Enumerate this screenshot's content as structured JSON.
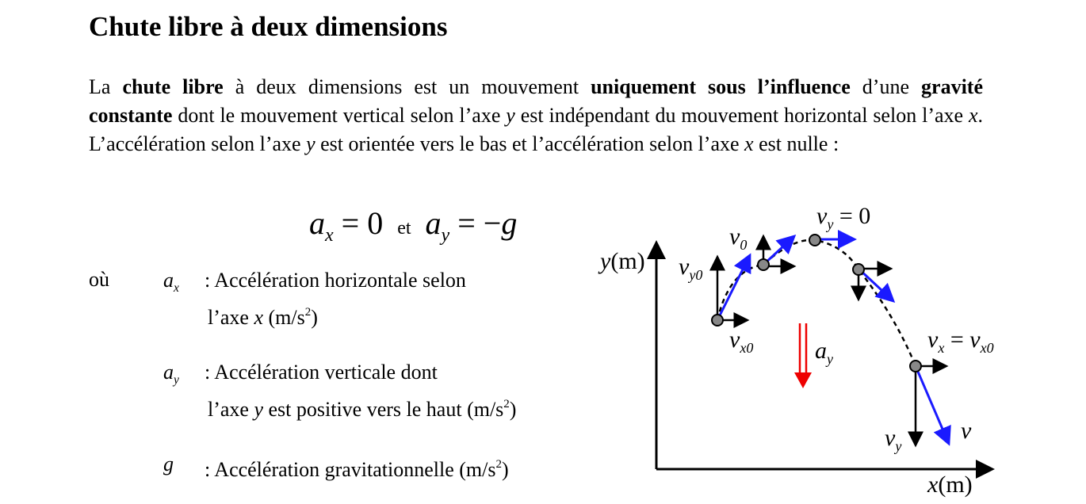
{
  "title": "Chute libre à deux dimensions",
  "paragraph": [
    {
      "text": "La ",
      "style": "normal"
    },
    {
      "text": "chute libre",
      "style": "bold"
    },
    {
      "text": " à deux dimensions est un mouvement ",
      "style": "normal"
    },
    {
      "text": "uniquement sous l’influence",
      "style": "bold"
    },
    {
      "text": " d’une ",
      "style": "normal"
    },
    {
      "text": "gravité constante",
      "style": "bold"
    },
    {
      "text": " dont le mouvement vertical selon l’axe ",
      "style": "normal"
    },
    {
      "text": "y",
      "style": "italic"
    },
    {
      "text": " est indépendant du mouvement horizontal selon l’axe ",
      "style": "normal"
    },
    {
      "text": "x",
      "style": "italic"
    },
    {
      "text": ". L’accélération selon l’axe ",
      "style": "normal"
    },
    {
      "text": "y",
      "style": "italic"
    },
    {
      "text": " est orientée vers le bas et l’accélération selon l’axe ",
      "style": "normal"
    },
    {
      "text": "x",
      "style": "italic"
    },
    {
      "text": " est nulle :",
      "style": "normal"
    }
  ],
  "equation": [
    {
      "text": "a",
      "sub": "x",
      "style": "italic"
    },
    {
      "text": " = 0",
      "style": "normal"
    },
    {
      "text": "et",
      "style": "small"
    },
    {
      "text": "a",
      "sub": "y",
      "style": "italic"
    },
    {
      "text": " = −",
      "style": "normal"
    },
    {
      "text": "g",
      "style": "italic"
    }
  ],
  "where": "où",
  "definitions": [
    {
      "symbol": {
        "text": "a",
        "sub": "x",
        "style": "italic"
      },
      "lines": [
        [
          {
            "text": ": Accélération horizontale selon",
            "style": "normal"
          }
        ],
        [
          {
            "text": "l’axe ",
            "style": "normal"
          },
          {
            "text": "x",
            "style": "italic"
          },
          {
            "text": " (m/s",
            "style": "normal"
          },
          {
            "text": "2",
            "style": "sup"
          },
          {
            "text": ")",
            "style": "normal"
          }
        ]
      ]
    },
    {
      "symbol": {
        "text": "a",
        "sub": "y",
        "style": "italic"
      },
      "lines": [
        [
          {
            "text": ": Accélération verticale dont",
            "style": "normal"
          }
        ],
        [
          {
            "text": "l’axe ",
            "style": "normal"
          },
          {
            "text": "y",
            "style": "italic"
          },
          {
            "text": " est positive vers le haut (m/s",
            "style": "normal"
          },
          {
            "text": "2",
            "style": "sup"
          },
          {
            "text": ")",
            "style": "normal"
          }
        ]
      ]
    },
    {
      "symbol": {
        "text": "g",
        "style": "italic"
      },
      "lines": [
        [
          {
            "text": ": Accélération gravitationnelle (m/s",
            "style": "normal"
          },
          {
            "text": "2",
            "style": "sup"
          },
          {
            "text": ")",
            "style": "normal"
          }
        ]
      ]
    }
  ],
  "diagram": {
    "y_axis": [
      {
        "text": "y",
        "style": "italic"
      },
      {
        "text": "(m)",
        "style": "normal"
      }
    ],
    "x_axis": [
      {
        "text": "x",
        "style": "italic"
      },
      {
        "text": "(m)",
        "style": "normal"
      }
    ],
    "v0": [
      {
        "text": "v",
        "sub": "0",
        "style": "italic"
      }
    ],
    "vy0": [
      {
        "text": "v",
        "sub": "y0",
        "style": "italic"
      }
    ],
    "vx0": [
      {
        "text": "v",
        "sub": "x0",
        "style": "italic"
      }
    ],
    "vy_top": [
      {
        "text": "v",
        "sub": "y",
        "style": "italic"
      },
      {
        "text": " = 0",
        "style": "normal"
      }
    ],
    "ay": [
      {
        "text": "a",
        "sub": "y",
        "style": "italic"
      }
    ],
    "vx_eq": [
      {
        "text": "v",
        "sub": "x",
        "style": "italic"
      },
      {
        "text": " = ",
        "style": "normal"
      },
      {
        "text": "v",
        "sub": "x0",
        "style": "italic"
      }
    ],
    "vy": [
      {
        "text": "v",
        "sub": "y",
        "style": "italic"
      }
    ],
    "v": [
      {
        "text": "v",
        "style": "italic"
      }
    ]
  }
}
